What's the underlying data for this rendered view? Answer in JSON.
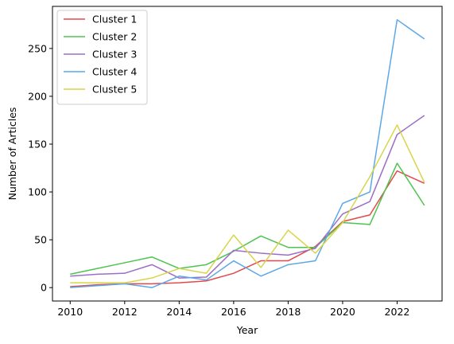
{
  "chart_data": {
    "type": "line",
    "title": "",
    "xlabel": "Year",
    "ylabel": "Number of Articles",
    "xlim": [
      2009.35,
      2023.65
    ],
    "ylim": [
      -14,
      294
    ],
    "xticks": [
      2010,
      2012,
      2014,
      2016,
      2018,
      2020,
      2022
    ],
    "yticks": [
      0,
      50,
      100,
      150,
      200,
      250
    ],
    "grid": false,
    "legend_position": "top-left",
    "x": [
      2010,
      2011,
      2012,
      2013,
      2014,
      2015,
      2016,
      2017,
      2018,
      2019,
      2020,
      2021,
      2022,
      2023
    ],
    "series": [
      {
        "name": "Cluster 1",
        "color": "#e24a4a",
        "values": [
          1,
          3,
          4,
          4,
          5,
          7,
          15,
          28,
          28,
          43,
          69,
          76,
          122,
          109
        ]
      },
      {
        "name": "Cluster 2",
        "color": "#4fc34f",
        "values": [
          14,
          20,
          26,
          32,
          20,
          24,
          38,
          54,
          42,
          42,
          68,
          66,
          130,
          86
        ]
      },
      {
        "name": "Cluster 3",
        "color": "#9d6ec6",
        "values": [
          12,
          14,
          15,
          24,
          10,
          11,
          39,
          36,
          34,
          41,
          77,
          90,
          160,
          180
        ]
      },
      {
        "name": "Cluster 4",
        "color": "#5ca8e6",
        "values": [
          0,
          2,
          4,
          0,
          12,
          8,
          28,
          12,
          24,
          28,
          88,
          100,
          280,
          260
        ]
      },
      {
        "name": "Cluster 5",
        "color": "#d9d44a",
        "values": [
          5,
          5,
          5,
          10,
          20,
          15,
          55,
          21,
          60,
          36,
          68,
          116,
          170,
          110
        ]
      }
    ]
  }
}
